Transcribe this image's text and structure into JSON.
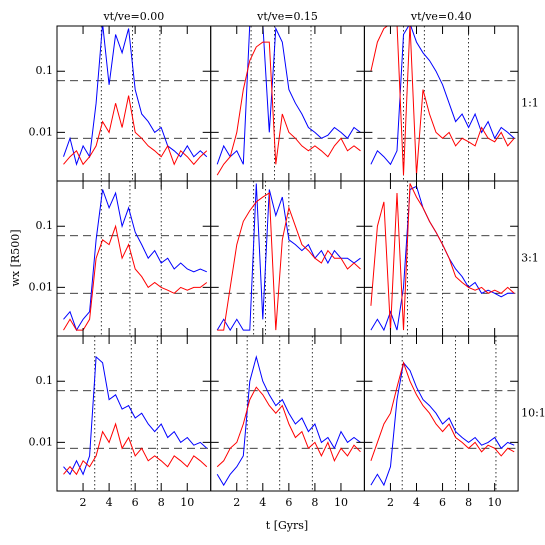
{
  "axes": {
    "x_label": "t [Gyrs]",
    "y_label": "wx [R500]",
    "xlim": [
      0,
      11.8
    ],
    "ylim": [
      0.0016,
      0.55
    ],
    "log_y": true,
    "xticks": [
      2,
      4,
      6,
      8,
      10
    ],
    "yticks": [
      0.01,
      0.1
    ],
    "hlines": [
      0.07,
      0.008
    ]
  },
  "chart_data": [
    {
      "type": "line",
      "title": "vt/ve=0.00",
      "row": 0,
      "col": 0,
      "vlines": [
        3.4,
        5.8,
        7.9
      ],
      "x": [
        0.5,
        1,
        1.5,
        2,
        2.5,
        3,
        3.5,
        4,
        4.5,
        5,
        5.5,
        6,
        6.5,
        7,
        7.5,
        8,
        8.5,
        9,
        9.5,
        10,
        10.5,
        11,
        11.5
      ],
      "series": [
        {
          "name": "blue",
          "color": "#0000ff",
          "values": [
            0.004,
            0.008,
            0.003,
            0.006,
            0.004,
            0.03,
            0.6,
            0.06,
            0.4,
            0.2,
            0.5,
            0.05,
            0.02,
            0.015,
            0.01,
            0.012,
            0.006,
            0.005,
            0.004,
            0.006,
            0.004,
            0.005,
            0.004
          ]
        },
        {
          "name": "red",
          "color": "#ff0000",
          "values": [
            0.003,
            0.004,
            0.005,
            0.003,
            0.004,
            0.006,
            0.015,
            0.01,
            0.03,
            0.012,
            0.04,
            0.01,
            0.008,
            0.006,
            0.005,
            0.004,
            0.006,
            0.003,
            0.005,
            0.004,
            0.003,
            0.004,
            0.005
          ]
        }
      ]
    },
    {
      "type": "line",
      "title": "vt/ve=0.15",
      "row": 0,
      "col": 1,
      "vlines": [
        3.1,
        4.9,
        7.7
      ],
      "x": [
        0.5,
        1,
        1.5,
        2,
        2.5,
        3,
        3.5,
        4,
        4.5,
        5,
        5.5,
        6,
        6.5,
        7,
        7.5,
        8,
        8.5,
        9,
        9.5,
        10,
        10.5,
        11,
        11.5
      ],
      "series": [
        {
          "name": "blue",
          "color": "#0000ff",
          "values": [
            0.003,
            0.006,
            0.004,
            0.005,
            0.003,
            0.6,
            0.6,
            0.6,
            0.01,
            0.5,
            0.3,
            0.05,
            0.03,
            0.02,
            0.012,
            0.01,
            0.008,
            0.009,
            0.012,
            0.01,
            0.008,
            0.012,
            0.01
          ]
        },
        {
          "name": "red",
          "color": "#ff0000",
          "values": [
            0.002,
            0.003,
            0.004,
            0.01,
            0.05,
            0.15,
            0.25,
            0.3,
            0.3,
            0.003,
            0.02,
            0.01,
            0.008,
            0.006,
            0.005,
            0.006,
            0.005,
            0.004,
            0.006,
            0.008,
            0.005,
            0.006,
            0.005
          ]
        }
      ]
    },
    {
      "type": "line",
      "title": "vt/ve=0.40",
      "row": 0,
      "col": 2,
      "vlines": [
        3.0,
        4.6,
        8.0
      ],
      "x": [
        0.5,
        1,
        1.5,
        2,
        2.5,
        3,
        3.5,
        4,
        4.5,
        5,
        5.5,
        6,
        6.5,
        7,
        7.5,
        8,
        8.5,
        9,
        9.5,
        10,
        10.5,
        11,
        11.5
      ],
      "series": [
        {
          "name": "blue",
          "color": "#0000ff",
          "values": [
            0.003,
            0.005,
            0.004,
            0.003,
            0.005,
            0.4,
            0.6,
            0.3,
            0.2,
            0.15,
            0.1,
            0.06,
            0.03,
            0.015,
            0.02,
            0.012,
            0.02,
            0.01,
            0.015,
            0.008,
            0.012,
            0.01,
            0.008
          ]
        },
        {
          "name": "red",
          "color": "#ff0000",
          "values": [
            0.1,
            0.3,
            0.5,
            0.6,
            0.6,
            0.002,
            0.6,
            0.002,
            0.05,
            0.02,
            0.01,
            0.008,
            0.01,
            0.006,
            0.008,
            0.007,
            0.006,
            0.012,
            0.008,
            0.007,
            0.01,
            0.006,
            0.008
          ]
        }
      ]
    },
    {
      "type": "line",
      "row_label": "1:1",
      "row": 0,
      "col": 2,
      "vlines": []
    },
    {
      "type": "line",
      "row": 1,
      "col": 0,
      "vlines": [
        3.4,
        5.6,
        8.0
      ],
      "x": [
        0.5,
        1,
        1.5,
        2,
        2.5,
        3,
        3.5,
        4,
        4.5,
        5,
        5.5,
        6,
        6.5,
        7,
        7.5,
        8,
        8.5,
        9,
        9.5,
        10,
        10.5,
        11,
        11.5
      ],
      "series": [
        {
          "name": "blue",
          "color": "#0000ff",
          "values": [
            0.003,
            0.004,
            0.002,
            0.003,
            0.004,
            0.06,
            0.4,
            0.2,
            0.35,
            0.1,
            0.2,
            0.08,
            0.05,
            0.03,
            0.04,
            0.025,
            0.03,
            0.02,
            0.025,
            0.02,
            0.018,
            0.02,
            0.018
          ]
        },
        {
          "name": "red",
          "color": "#ff0000",
          "values": [
            0.002,
            0.003,
            0.002,
            0.002,
            0.003,
            0.03,
            0.06,
            0.05,
            0.1,
            0.03,
            0.05,
            0.02,
            0.015,
            0.01,
            0.012,
            0.01,
            0.009,
            0.008,
            0.01,
            0.009,
            0.01,
            0.01,
            0.012
          ]
        }
      ]
    },
    {
      "type": "line",
      "row": 1,
      "col": 1,
      "vlines": [
        3.3,
        4.2,
        6.0
      ],
      "x": [
        0.5,
        1,
        1.5,
        2,
        2.5,
        3,
        3.5,
        4,
        4.5,
        5,
        5.5,
        6,
        6.5,
        7,
        7.5,
        8,
        8.5,
        9,
        9.5,
        10,
        10.5,
        11,
        11.5
      ],
      "series": [
        {
          "name": "blue",
          "color": "#0000ff",
          "values": [
            0.002,
            0.003,
            0.002,
            0.003,
            0.002,
            0.002,
            0.5,
            0.003,
            0.4,
            0.15,
            0.3,
            0.06,
            0.05,
            0.04,
            0.05,
            0.03,
            0.04,
            0.025,
            0.04,
            0.03,
            0.03,
            0.025,
            0.03
          ]
        },
        {
          "name": "red",
          "color": "#ff0000",
          "values": [
            0.002,
            0.002,
            0.01,
            0.05,
            0.12,
            0.18,
            0.25,
            0.3,
            0.35,
            0.002,
            0.06,
            0.2,
            0.1,
            0.05,
            0.04,
            0.03,
            0.025,
            0.04,
            0.03,
            0.03,
            0.02,
            0.025,
            0.02
          ]
        }
      ]
    },
    {
      "type": "line",
      "row_label": "3:1",
      "row": 1,
      "col": 2,
      "vlines": [
        3.3,
        6.0,
        8.0
      ],
      "x": [
        0.5,
        1,
        1.5,
        2,
        2.5,
        3,
        3.5,
        4,
        4.5,
        5,
        5.5,
        6,
        6.5,
        7,
        7.5,
        8,
        8.5,
        9,
        9.5,
        10,
        10.5,
        11,
        11.5
      ],
      "series": [
        {
          "name": "blue",
          "color": "#0000ff",
          "values": [
            0.002,
            0.003,
            0.002,
            0.004,
            0.002,
            0.01,
            0.4,
            0.45,
            0.2,
            0.12,
            0.08,
            0.05,
            0.03,
            0.02,
            0.015,
            0.01,
            0.012,
            0.008,
            0.009,
            0.008,
            0.007,
            0.008,
            0.008
          ]
        },
        {
          "name": "red",
          "color": "#ff0000",
          "values": [
            0.005,
            0.1,
            0.25,
            0.002,
            0.35,
            0.002,
            0.5,
            0.3,
            0.2,
            0.12,
            0.08,
            0.05,
            0.03,
            0.015,
            0.012,
            0.01,
            0.009,
            0.01,
            0.008,
            0.009,
            0.008,
            0.01,
            0.008
          ]
        }
      ]
    },
    {
      "type": "line",
      "row": 2,
      "col": 0,
      "vlines": [
        2.9,
        5.7,
        7.7
      ],
      "x": [
        0.5,
        1,
        1.5,
        2,
        2.5,
        3,
        3.5,
        4,
        4.5,
        5,
        5.5,
        6,
        6.5,
        7,
        7.5,
        8,
        8.5,
        9,
        9.5,
        10,
        10.5,
        11,
        11.5
      ],
      "series": [
        {
          "name": "blue",
          "color": "#0000ff",
          "values": [
            0.004,
            0.003,
            0.005,
            0.003,
            0.006,
            0.25,
            0.2,
            0.05,
            0.06,
            0.035,
            0.04,
            0.025,
            0.03,
            0.02,
            0.015,
            0.02,
            0.012,
            0.015,
            0.01,
            0.012,
            0.009,
            0.01,
            0.008
          ]
        },
        {
          "name": "red",
          "color": "#ff0000",
          "values": [
            0.003,
            0.004,
            0.003,
            0.005,
            0.004,
            0.006,
            0.015,
            0.01,
            0.02,
            0.008,
            0.012,
            0.006,
            0.008,
            0.005,
            0.006,
            0.005,
            0.004,
            0.006,
            0.005,
            0.004,
            0.006,
            0.005,
            0.004
          ]
        }
      ]
    },
    {
      "type": "line",
      "row": 2,
      "col": 1,
      "vlines": [
        2.8,
        5.3,
        7.8
      ],
      "x": [
        0.5,
        1,
        1.5,
        2,
        2.5,
        3,
        3.5,
        4,
        4.5,
        5,
        5.5,
        6,
        6.5,
        7,
        7.5,
        8,
        8.5,
        9,
        9.5,
        10,
        10.5,
        11,
        11.5
      ],
      "series": [
        {
          "name": "blue",
          "color": "#0000ff",
          "values": [
            0.003,
            0.002,
            0.003,
            0.004,
            0.006,
            0.1,
            0.25,
            0.1,
            0.06,
            0.04,
            0.05,
            0.03,
            0.02,
            0.025,
            0.015,
            0.02,
            0.01,
            0.012,
            0.008,
            0.015,
            0.01,
            0.012,
            0.01
          ]
        },
        {
          "name": "red",
          "color": "#ff0000",
          "values": [
            0.004,
            0.005,
            0.008,
            0.01,
            0.02,
            0.05,
            0.08,
            0.06,
            0.04,
            0.03,
            0.04,
            0.02,
            0.012,
            0.015,
            0.008,
            0.01,
            0.006,
            0.01,
            0.005,
            0.008,
            0.006,
            0.009,
            0.007
          ]
        }
      ]
    },
    {
      "type": "line",
      "row_label": "10:1",
      "row": 2,
      "col": 2,
      "vlines": [
        2.9,
        7.0,
        10.1
      ],
      "x": [
        0.5,
        1,
        1.5,
        2,
        2.5,
        3,
        3.5,
        4,
        4.5,
        5,
        5.5,
        6,
        6.5,
        7,
        7.5,
        8,
        8.5,
        9,
        9.5,
        10,
        10.5,
        11,
        11.5
      ],
      "series": [
        {
          "name": "blue",
          "color": "#0000ff",
          "values": [
            0.002,
            0.003,
            0.002,
            0.004,
            0.05,
            0.2,
            0.15,
            0.08,
            0.05,
            0.04,
            0.03,
            0.02,
            0.025,
            0.015,
            0.012,
            0.01,
            0.012,
            0.009,
            0.01,
            0.012,
            0.008,
            0.01,
            0.009
          ]
        },
        {
          "name": "red",
          "color": "#ff0000",
          "values": [
            0.005,
            0.01,
            0.02,
            0.03,
            0.08,
            0.2,
            0.1,
            0.06,
            0.04,
            0.03,
            0.02,
            0.015,
            0.02,
            0.012,
            0.01,
            0.008,
            0.01,
            0.007,
            0.009,
            0.008,
            0.006,
            0.008,
            0.007
          ]
        }
      ]
    }
  ]
}
